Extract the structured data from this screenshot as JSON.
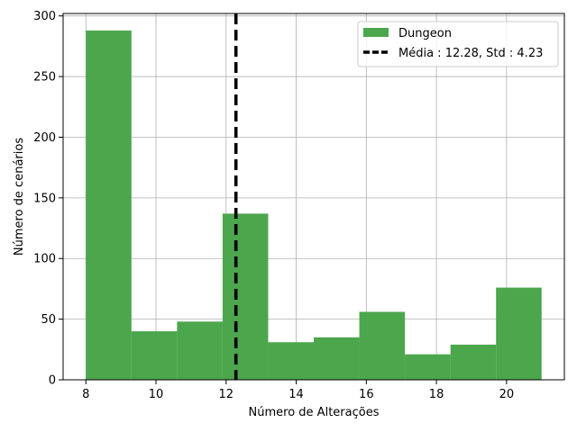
{
  "chart_data": {
    "type": "histogram",
    "xlabel": "Número de Alterações",
    "ylabel": "Número de cenários",
    "xlim": [
      7.35,
      21.65
    ],
    "ylim": [
      0,
      302
    ],
    "grid": true,
    "x_ticks": [
      8,
      10,
      12,
      14,
      16,
      18,
      20
    ],
    "x_tick_labels": [
      "8",
      "10",
      "12",
      "14",
      "16",
      "18",
      "20"
    ],
    "y_ticks": [
      0,
      50,
      100,
      150,
      200,
      250,
      300
    ],
    "y_tick_labels": [
      "0",
      "50",
      "100",
      "150",
      "200",
      "250",
      "300"
    ],
    "bin_edges": [
      8,
      9.3,
      10.6,
      11.9,
      13.2,
      14.5,
      15.8,
      17.1,
      18.4,
      19.7,
      21
    ],
    "series": [
      {
        "name": "Dungeon",
        "color": "#4ca64c",
        "values": [
          288,
          40,
          48,
          137,
          31,
          35,
          56,
          21,
          29,
          76
        ]
      }
    ],
    "mean_line": {
      "name": "Média : 12.28, Std : 4.23",
      "x": 12.28,
      "color": "#000000",
      "style": "dashed"
    },
    "legend_position": "top-right"
  }
}
